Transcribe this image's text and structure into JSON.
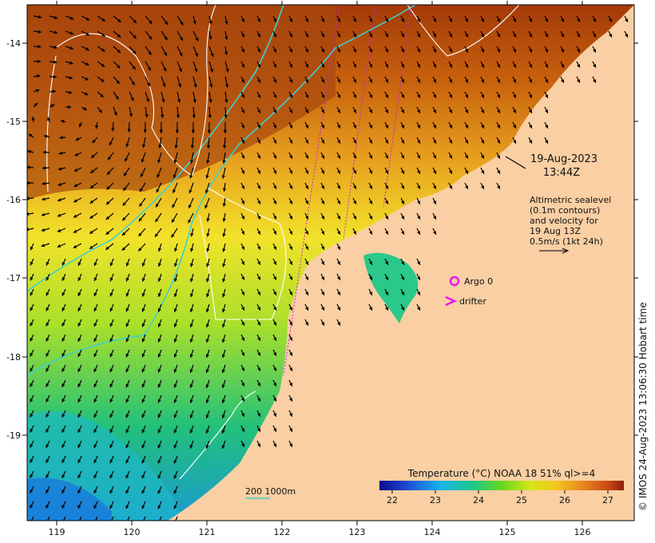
{
  "map": {
    "lon_ticks": [
      "119",
      "120",
      "121",
      "122",
      "123",
      "124",
      "125",
      "126"
    ],
    "lat_ticks": [
      "-14",
      "-15",
      "-16",
      "-17",
      "-18",
      "-19"
    ],
    "timestamp_date": "19-Aug-2023",
    "timestamp_time": "13:44Z",
    "sealevel_note": [
      "Altimetric sealevel",
      "(0.1m contours)",
      "and velocity for",
      "19 Aug 13Z",
      "0.5m/s (1kt 24h)"
    ],
    "argo_label": "Argo 0",
    "drifter_label": "drifter",
    "isobath_label": "200  1000m",
    "colorbar_title": "Temperature (°C) NOAA 18 51% ql>=4",
    "colorbar_ticks": [
      "22",
      "23",
      "24",
      "25",
      "26",
      "27"
    ],
    "credit": "© IMOS 24-Aug-2023 13:06:30 Hobart time",
    "colors": {
      "land": "#f9cfa3",
      "argo_marker": "#e619e6",
      "isobath": "#40d0d0",
      "contour": "#ffffff"
    }
  }
}
